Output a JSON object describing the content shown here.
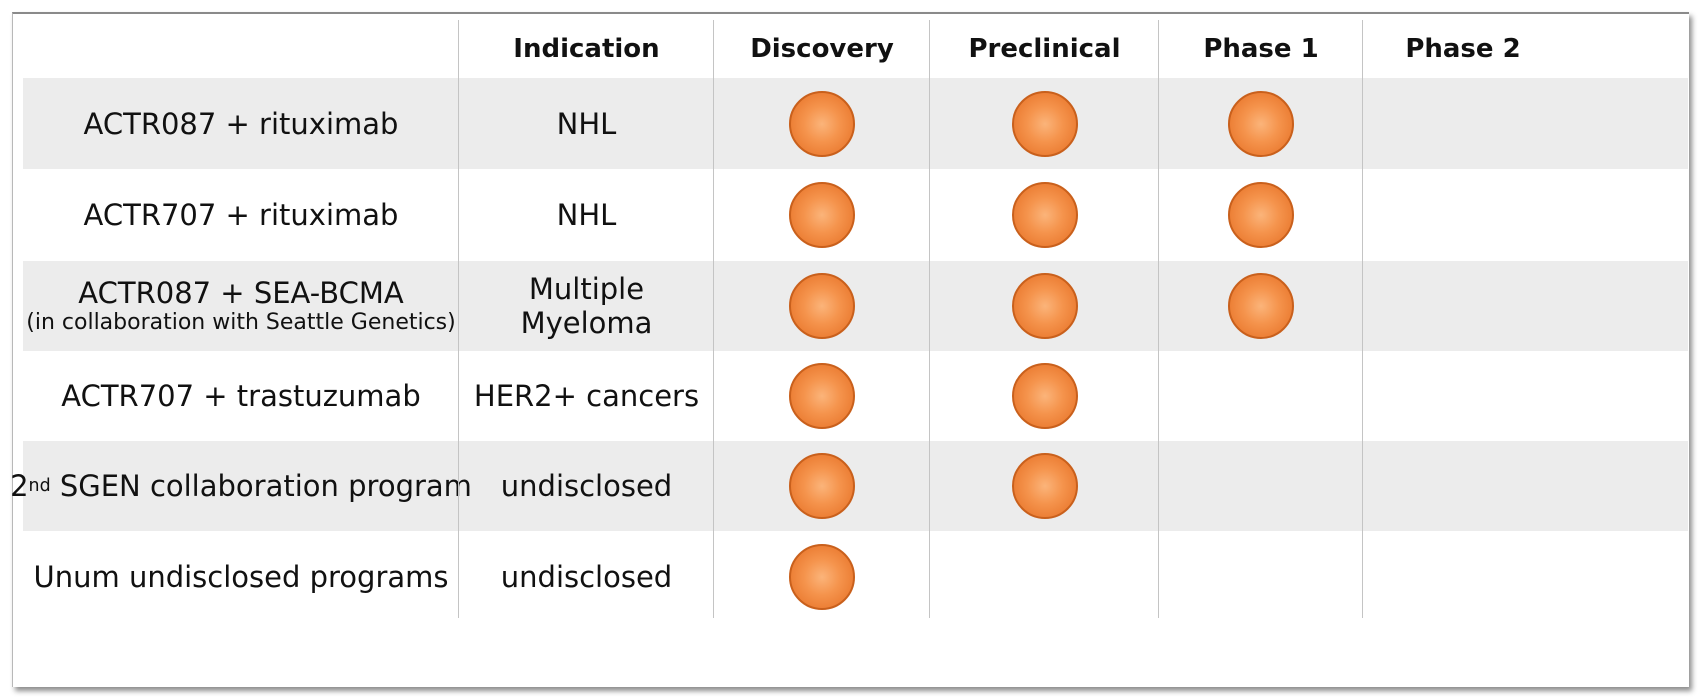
{
  "header": {
    "program": "",
    "indication": "Indication",
    "discovery": "Discovery",
    "preclinical": "Preclinical",
    "phase1": "Phase 1",
    "phase2": "Phase 2"
  },
  "rows": [
    {
      "program": "ACTR087 + rituximab",
      "indication": "NHL",
      "stages": {
        "discovery": true,
        "preclinical": true,
        "phase1": true,
        "phase2": false
      }
    },
    {
      "program": "ACTR707 + rituximab",
      "indication": "NHL",
      "stages": {
        "discovery": true,
        "preclinical": true,
        "phase1": true,
        "phase2": false
      }
    },
    {
      "program": "ACTR087 + SEA-BCMA",
      "subtitle": "(in collaboration with Seattle Genetics)",
      "indication": "Multiple Myeloma",
      "stages": {
        "discovery": true,
        "preclinical": true,
        "phase1": true,
        "phase2": false
      }
    },
    {
      "program": "ACTR707 + trastuzumab",
      "indication": "HER2+ cancers",
      "stages": {
        "discovery": true,
        "preclinical": true,
        "phase1": false,
        "phase2": false
      }
    },
    {
      "program_prefix": "2",
      "program_sup": "nd",
      "program_rest": " SGEN collaboration program",
      "indication": "undisclosed",
      "stages": {
        "discovery": true,
        "preclinical": true,
        "phase1": false,
        "phase2": false
      }
    },
    {
      "program": "Unum undisclosed programs",
      "indication": "undisclosed",
      "stages": {
        "discovery": true,
        "preclinical": false,
        "phase1": false,
        "phase2": false
      }
    }
  ],
  "colors": {
    "dot": "#f08a3c",
    "dot_border": "#c9601c",
    "row_shade": "#ececec"
  },
  "icons": {
    "stage_marker": "orange-circle-icon"
  }
}
